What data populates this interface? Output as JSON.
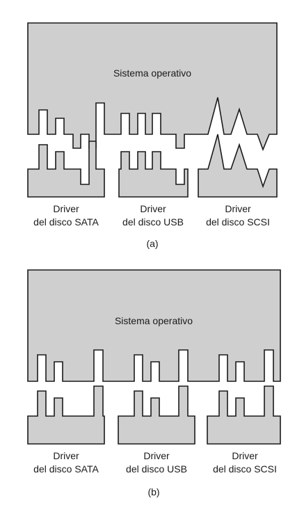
{
  "figure_a": {
    "os_label": "Sistema operativo",
    "drivers": [
      {
        "line1": "Driver",
        "line2": "del disco SATA"
      },
      {
        "line1": "Driver",
        "line2": "del disco USB"
      },
      {
        "line1": "Driver",
        "line2": "del disco SCSI"
      }
    ],
    "caption": "(a)"
  },
  "figure_b": {
    "os_label": "Sistema operativo",
    "drivers": [
      {
        "line1": "Driver",
        "line2": "del disco SATA"
      },
      {
        "line1": "Driver",
        "line2": "del disco USB"
      },
      {
        "line1": "Driver",
        "line2": "del disco SCSI"
      }
    ],
    "caption": "(b)"
  },
  "colors": {
    "fill": "#cfcfcf",
    "stroke": "#1a1a1a"
  }
}
